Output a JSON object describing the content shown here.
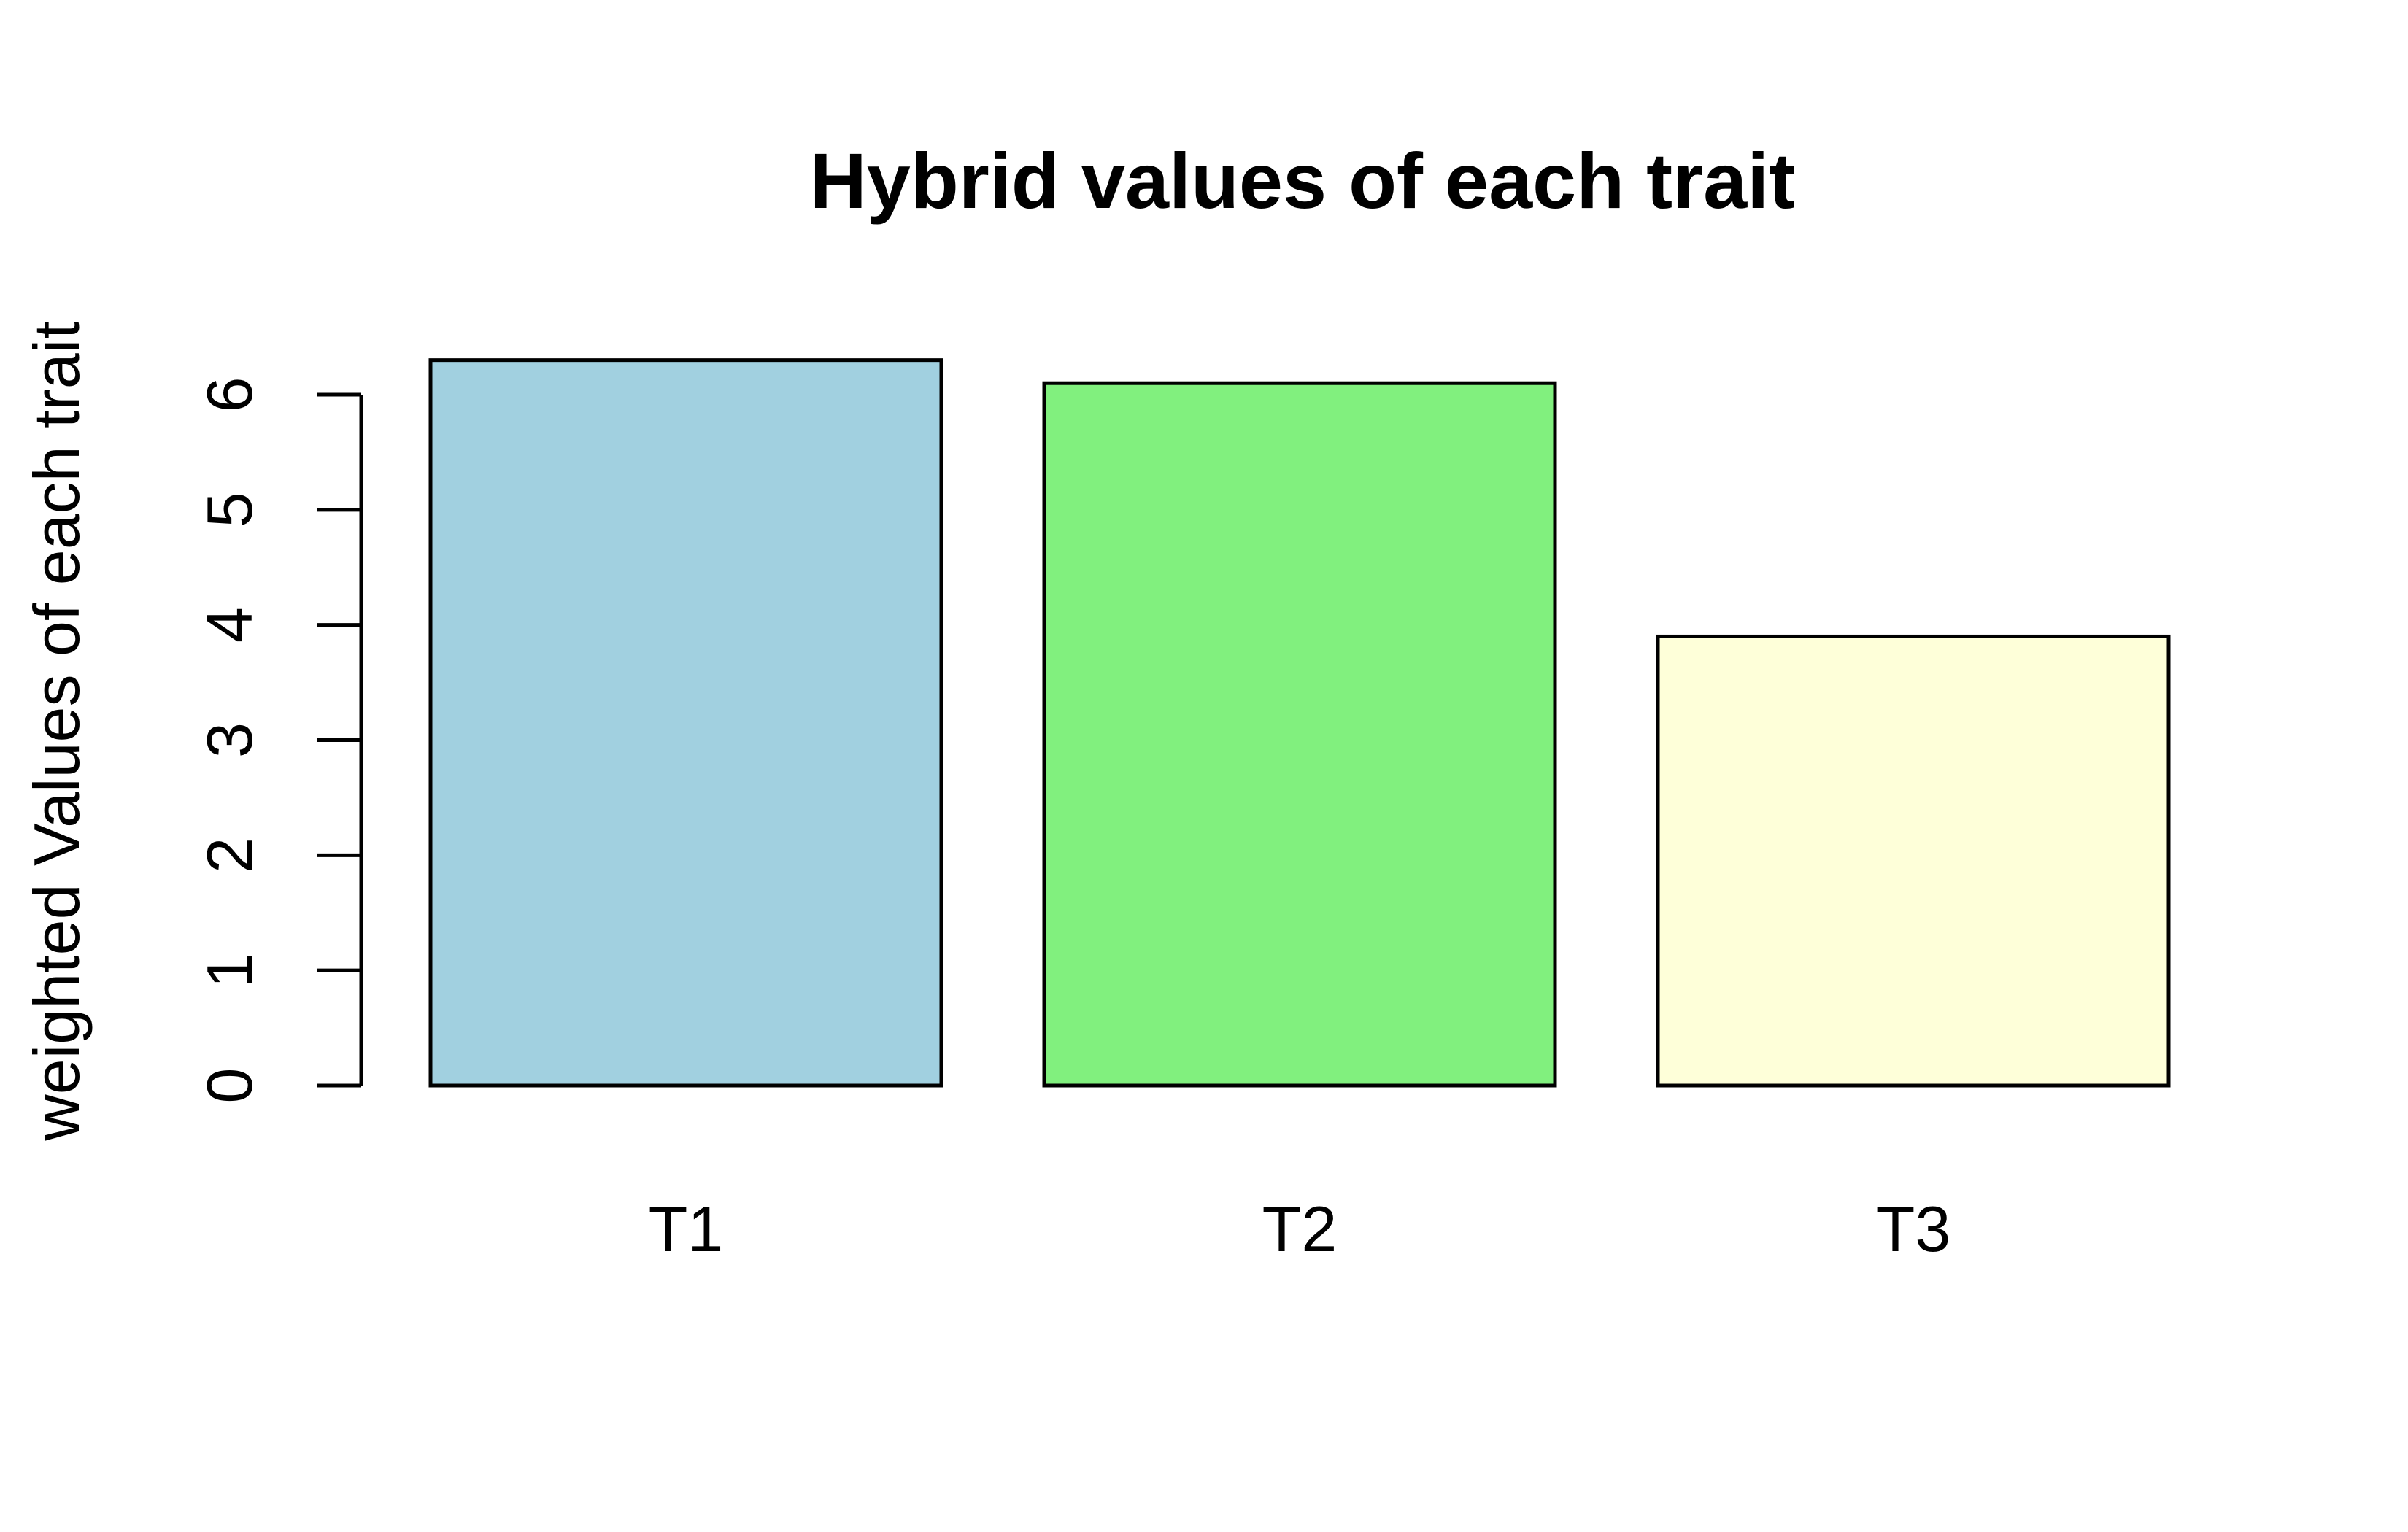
{
  "chart_data": {
    "type": "bar",
    "title": "Hybrid values of each trait",
    "xlabel": "",
    "ylabel": "weighted Values of each trait",
    "categories": [
      "T1",
      "T2",
      "T3"
    ],
    "values": [
      6.3,
      6.1,
      3.9
    ],
    "colors": [
      "#a1d0e0",
      "#81f07e",
      "#feffd9"
    ],
    "yticks": [
      0,
      1,
      2,
      3,
      4,
      5,
      6
    ],
    "ylim": [
      0,
      6.3
    ],
    "grid": false,
    "legend": "none"
  }
}
